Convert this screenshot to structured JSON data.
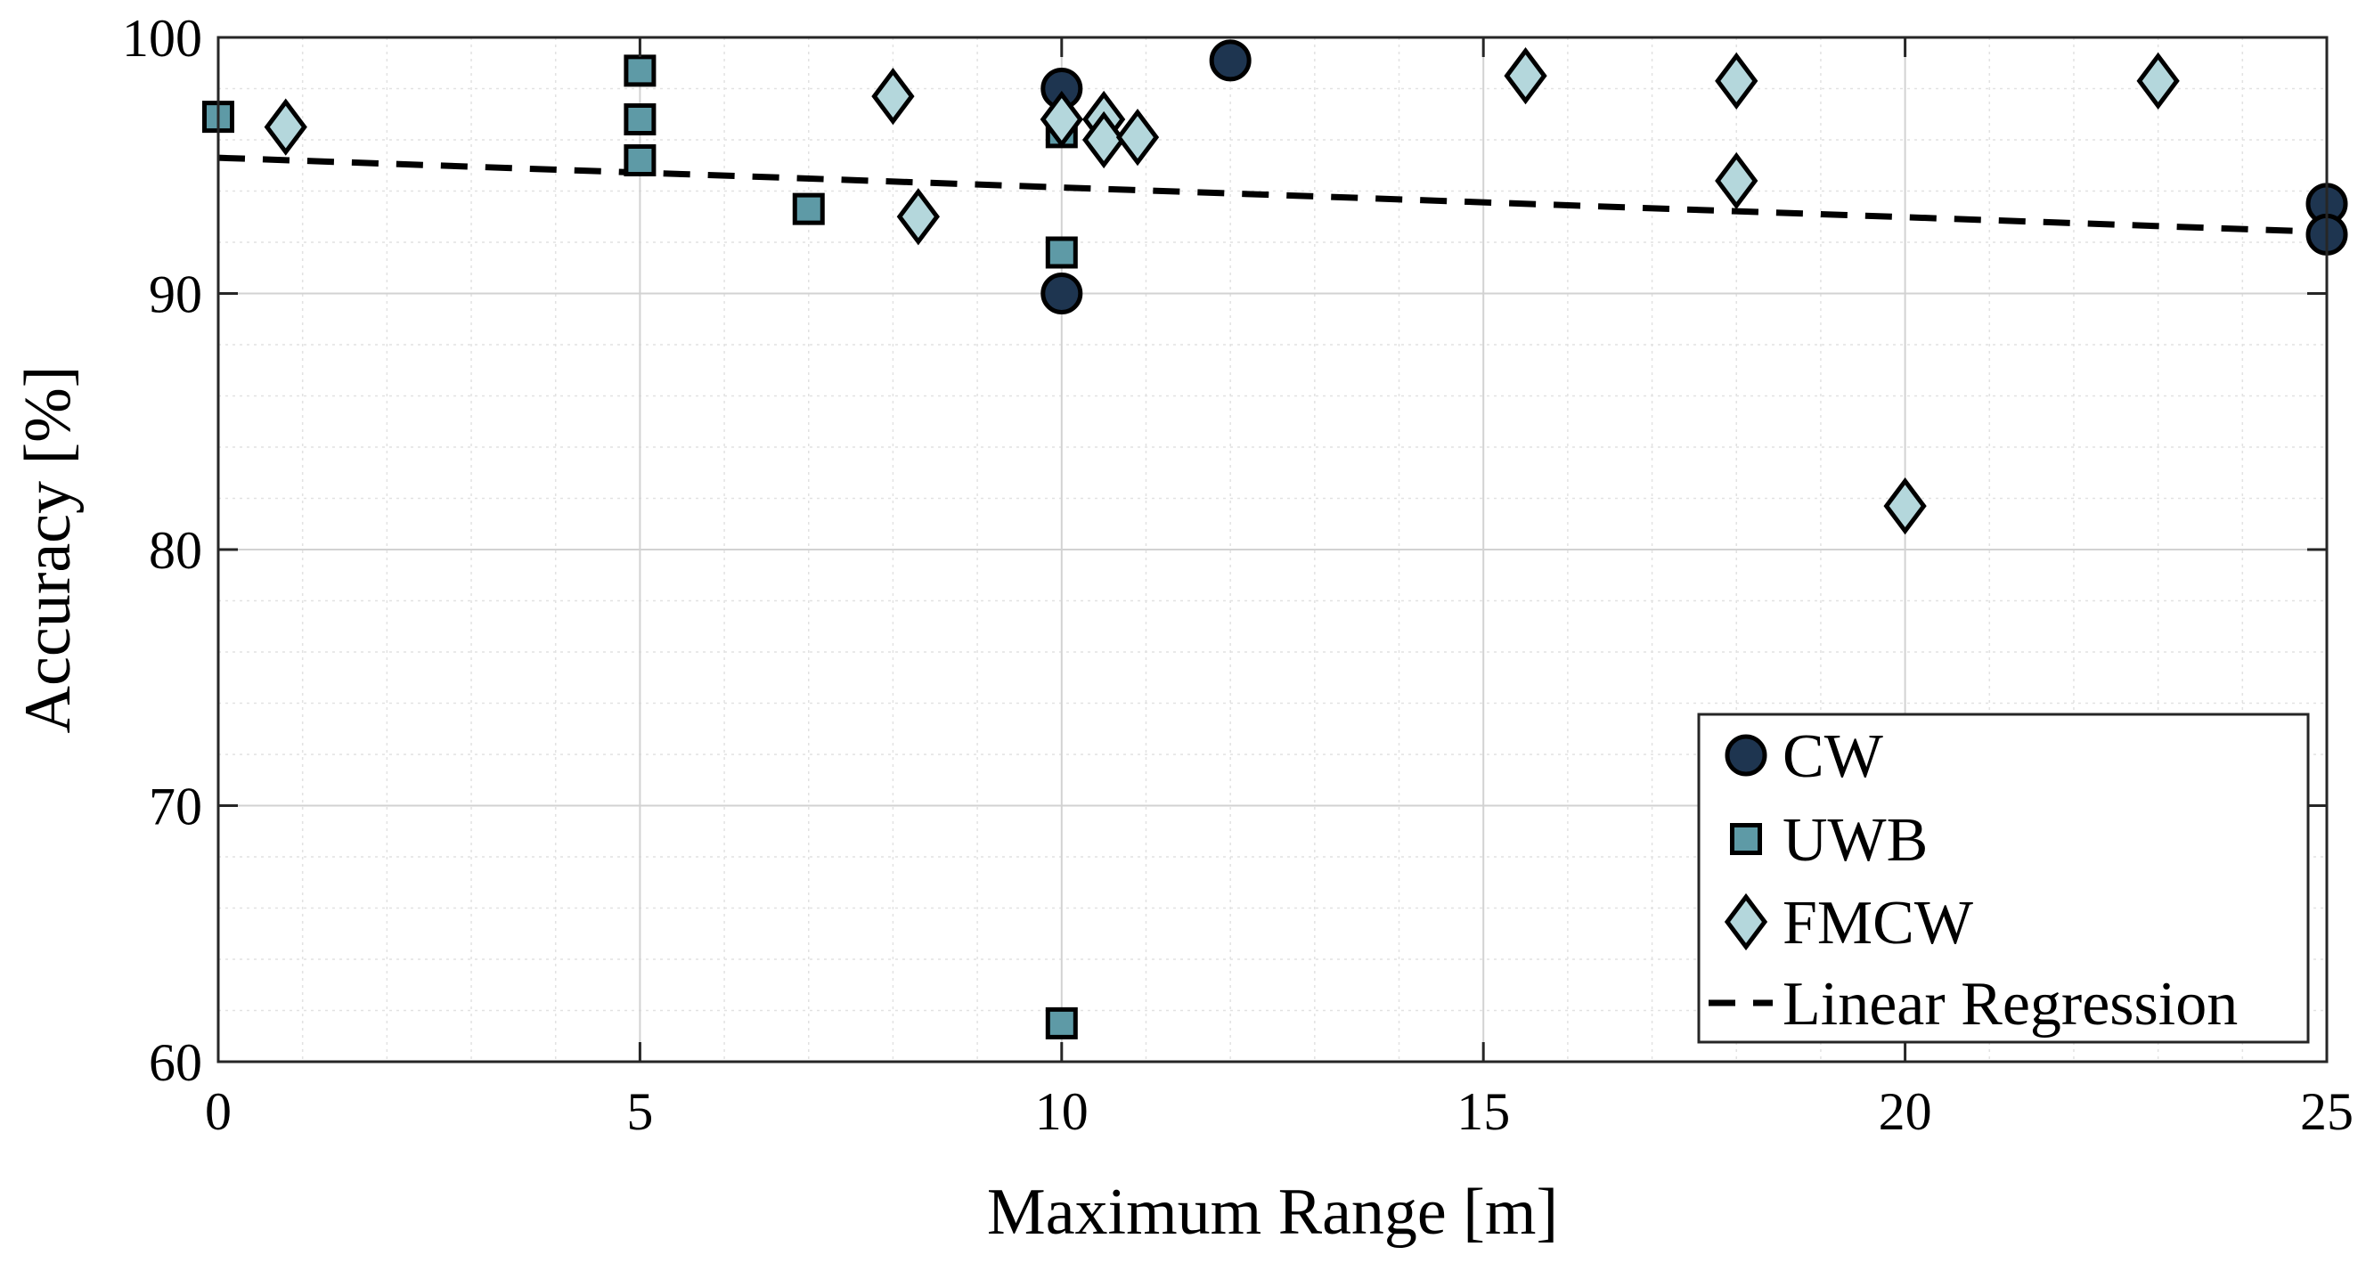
{
  "chart_data": {
    "type": "scatter",
    "title": "",
    "xlabel": "Maximum Range [m]",
    "ylabel": "Accuracy [%]",
    "xlim": [
      0,
      25
    ],
    "ylim": [
      60,
      100
    ],
    "x_ticks": [
      "0",
      "5",
      "10",
      "15",
      "20",
      "25"
    ],
    "y_ticks": [
      "60",
      "70",
      "80",
      "90",
      "100"
    ],
    "grid": true,
    "minor_grid": true,
    "legend_position": "bottom-right",
    "series": [
      {
        "name": "CW",
        "marker": "circle",
        "color": "#1e3550",
        "points": [
          [
            10,
            98.0
          ],
          [
            12,
            99.1
          ],
          [
            10,
            90.0
          ],
          [
            25,
            93.5
          ],
          [
            25,
            92.3
          ]
        ]
      },
      {
        "name": "UWB",
        "marker": "square",
        "color": "#5e9aa6",
        "points": [
          [
            0,
            96.9
          ],
          [
            5,
            98.7
          ],
          [
            5,
            96.8
          ],
          [
            5,
            95.2
          ],
          [
            7,
            93.3
          ],
          [
            10,
            96.3
          ],
          [
            10,
            91.6
          ],
          [
            10,
            61.5
          ]
        ]
      },
      {
        "name": "FMCW",
        "marker": "diamond",
        "color": "#b4d7dc",
        "points": [
          [
            0.8,
            96.5
          ],
          [
            8,
            97.7
          ],
          [
            8.3,
            93.0
          ],
          [
            10,
            96.8
          ],
          [
            10.5,
            96.8
          ],
          [
            10.5,
            96.0
          ],
          [
            10.9,
            96.1
          ],
          [
            15.5,
            98.5
          ],
          [
            18,
            98.3
          ],
          [
            18,
            94.4
          ],
          [
            20,
            81.7
          ],
          [
            23,
            98.3
          ]
        ]
      },
      {
        "name": "Linear Regression",
        "marker": "dashed-line",
        "color": "#000000",
        "points": [
          [
            0,
            95.3
          ],
          [
            25,
            92.4
          ]
        ]
      }
    ]
  }
}
